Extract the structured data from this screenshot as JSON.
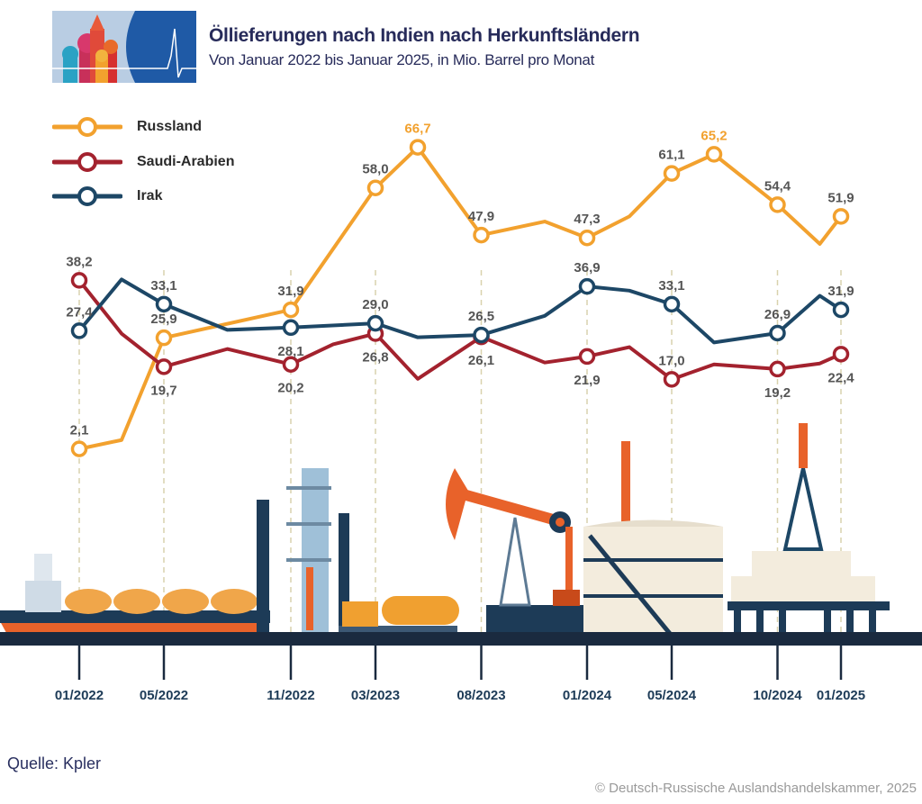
{
  "header": {
    "title": "Öllieferungen nach Indien nach Herkunftsländern",
    "subtitle": "Von Januar 2022 bis Januar 2025, in Mio. Barrel pro Monat"
  },
  "footer": {
    "source": "Quelle: Kpler",
    "copyright": "© Deutsch-Russische Auslandshandelskammer, 2025"
  },
  "chart_data": {
    "type": "line",
    "title": "Öllieferungen nach Indien nach Herkunftsländern",
    "subtitle": "Von Januar 2022 bis Januar 2025, in Mio. Barrel pro Monat",
    "legend_position": "top-left",
    "grid": false,
    "x_tick_labels": [
      "01/2022",
      "05/2022",
      "11/2022",
      "03/2023",
      "08/2023",
      "01/2024",
      "05/2024",
      "10/2024",
      "01/2025"
    ],
    "x_range": [
      "01/2022",
      "01/2025"
    ],
    "ylim": [
      0,
      70
    ],
    "series": [
      {
        "name": "Russland",
        "color": "#f2a12e",
        "points": [
          {
            "x": "01/2022",
            "y": 2.1,
            "label": "2,1"
          },
          {
            "x": "03/2022",
            "y": 4.0
          },
          {
            "x": "05/2022",
            "y": 25.9,
            "label": "25,9"
          },
          {
            "x": "11/2022",
            "y": 31.9,
            "label": "31,9"
          },
          {
            "x": "03/2023",
            "y": 58.0,
            "label": "58,0"
          },
          {
            "x": "05/2023",
            "y": 66.7,
            "label": "66,7",
            "highlight": true
          },
          {
            "x": "08/2023",
            "y": 47.9,
            "label": "47,9"
          },
          {
            "x": "11/2023",
            "y": 50.8
          },
          {
            "x": "01/2024",
            "y": 47.3,
            "label": "47,3"
          },
          {
            "x": "03/2024",
            "y": 51.9
          },
          {
            "x": "05/2024",
            "y": 61.1,
            "label": "61,1"
          },
          {
            "x": "07/2024",
            "y": 65.2,
            "label": "65,2",
            "highlight": true
          },
          {
            "x": "10/2024",
            "y": 54.4,
            "label": "54,4"
          },
          {
            "x": "12/2024",
            "y": 46.0
          },
          {
            "x": "01/2025",
            "y": 51.9,
            "label": "51,9"
          }
        ]
      },
      {
        "name": "Saudi-Arabien",
        "color": "#a3222e",
        "points": [
          {
            "x": "01/2022",
            "y": 38.2,
            "label": "38,2"
          },
          {
            "x": "03/2022",
            "y": 26.8
          },
          {
            "x": "05/2022",
            "y": 19.7,
            "label": "19,7"
          },
          {
            "x": "08/2022",
            "y": 23.5
          },
          {
            "x": "11/2022",
            "y": 20.2,
            "label": "20,2"
          },
          {
            "x": "01/2023",
            "y": 24.5
          },
          {
            "x": "03/2023",
            "y": 26.8,
            "label": "26,8"
          },
          {
            "x": "05/2023",
            "y": 17.1
          },
          {
            "x": "08/2023",
            "y": 26.1,
            "label": "26,1"
          },
          {
            "x": "11/2023",
            "y": 20.6
          },
          {
            "x": "01/2024",
            "y": 21.9,
            "label": "21,9"
          },
          {
            "x": "03/2024",
            "y": 23.9
          },
          {
            "x": "05/2024",
            "y": 17.0,
            "label": "17,0"
          },
          {
            "x": "07/2024",
            "y": 20.2
          },
          {
            "x": "10/2024",
            "y": 19.2,
            "label": "19,2"
          },
          {
            "x": "12/2024",
            "y": 20.4
          },
          {
            "x": "01/2025",
            "y": 22.4,
            "label": "22,4"
          }
        ]
      },
      {
        "name": "Irak",
        "color": "#1d4766",
        "points": [
          {
            "x": "01/2022",
            "y": 27.4,
            "label": "27,4"
          },
          {
            "x": "03/2022",
            "y": 38.4
          },
          {
            "x": "05/2022",
            "y": 33.1,
            "label": "33,1"
          },
          {
            "x": "08/2022",
            "y": 27.6
          },
          {
            "x": "11/2022",
            "y": 28.1,
            "label": "28,1"
          },
          {
            "x": "03/2023",
            "y": 29.0,
            "label": "29,0"
          },
          {
            "x": "05/2023",
            "y": 26.0
          },
          {
            "x": "08/2023",
            "y": 26.5,
            "label": "26,5"
          },
          {
            "x": "11/2023",
            "y": 30.6
          },
          {
            "x": "01/2024",
            "y": 36.9,
            "label": "36,9"
          },
          {
            "x": "03/2024",
            "y": 36.0
          },
          {
            "x": "05/2024",
            "y": 33.1,
            "label": "33,1"
          },
          {
            "x": "07/2024",
            "y": 24.9
          },
          {
            "x": "10/2024",
            "y": 26.9,
            "label": "26,9"
          },
          {
            "x": "12/2024",
            "y": 34.9
          },
          {
            "x": "01/2025",
            "y": 31.9,
            "label": "31,9"
          }
        ]
      }
    ]
  }
}
